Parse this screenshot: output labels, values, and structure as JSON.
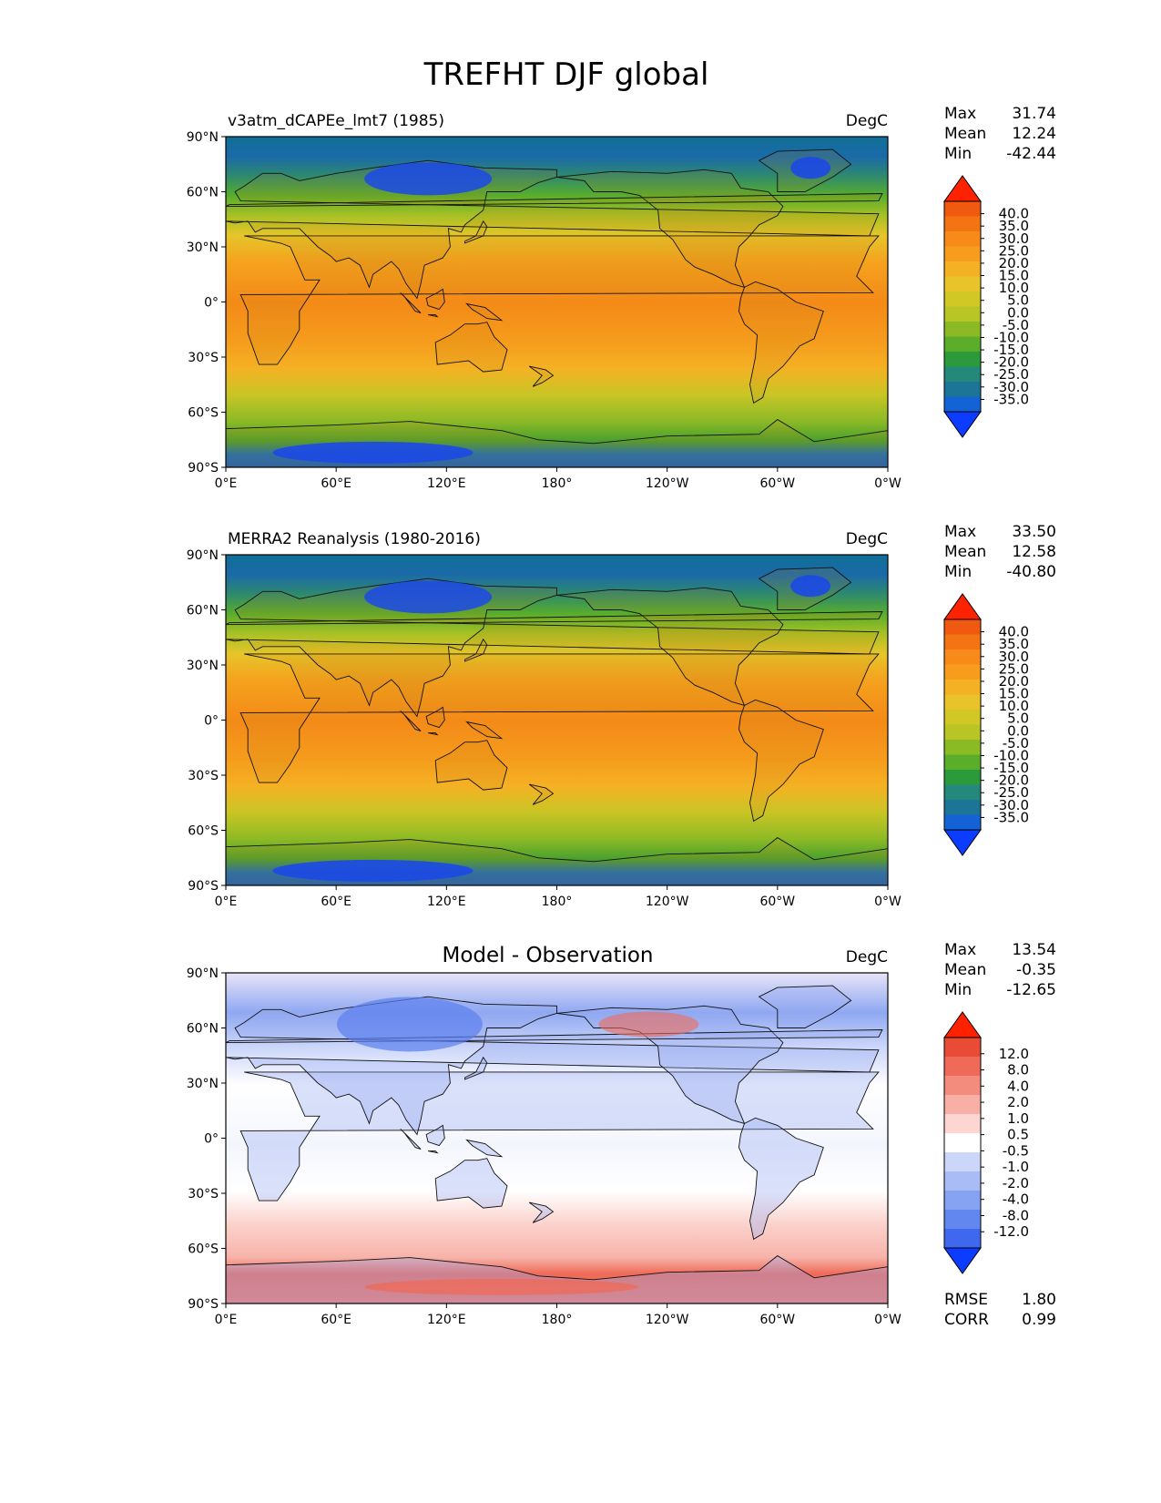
{
  "figure": {
    "title": "TREFHT DJF global"
  },
  "axes": {
    "lat_ticks": [
      {
        "value": 90,
        "label": "90°N"
      },
      {
        "value": 60,
        "label": "60°N"
      },
      {
        "value": 30,
        "label": "30°N"
      },
      {
        "value": 0,
        "label": "0°"
      },
      {
        "value": -30,
        "label": "30°S"
      },
      {
        "value": -60,
        "label": "60°S"
      },
      {
        "value": -90,
        "label": "90°S"
      }
    ],
    "lon_ticks": [
      {
        "value": 0,
        "label": "0°E"
      },
      {
        "value": 60,
        "label": "60°E"
      },
      {
        "value": 120,
        "label": "120°E"
      },
      {
        "value": 180,
        "label": "180°"
      },
      {
        "value": 240,
        "label": "120°W"
      },
      {
        "value": 300,
        "label": "60°W"
      },
      {
        "value": 360,
        "label": "0°W"
      }
    ]
  },
  "colors": {
    "temperature_levels": [
      "#0b3cff",
      "#1463d6",
      "#1c7596",
      "#24897a",
      "#2a9a3a",
      "#5aae2a",
      "#8cba25",
      "#b9c425",
      "#d2c825",
      "#e8c32a",
      "#f5b124",
      "#f79c1c",
      "#f78a18",
      "#f47414",
      "#ef5a10",
      "#ff2200"
    ],
    "difference_levels": [
      "#0b3cff",
      "#3f68ef",
      "#6288f0",
      "#86a3f3",
      "#aabcf6",
      "#cbd6fa",
      "#ffffff",
      "#fdd6d1",
      "#f8b0a6",
      "#f48c7e",
      "#ef6a58",
      "#e84b36",
      "#ff2200"
    ]
  },
  "chart_data": [
    {
      "type": "heatmap",
      "panel": "test",
      "title": "v3atm_dCAPEe_lmt7 (1985)",
      "units": "DegC",
      "stats": {
        "max_label": "Max",
        "max": "31.74",
        "mean_label": "Mean",
        "mean": "12.24",
        "min_label": "Min",
        "min": "-42.44"
      },
      "xlim": [
        0,
        360
      ],
      "ylim": [
        -90,
        90
      ],
      "colorbar_levels": [
        "40.0",
        "35.0",
        "30.0",
        "25.0",
        "20.0",
        "15.0",
        "10.0",
        "5.0",
        "0.0",
        "-5.0",
        "-10.0",
        "-15.0",
        "-20.0",
        "-25.0",
        "-30.0",
        "-35.0"
      ]
    },
    {
      "type": "heatmap",
      "panel": "reference",
      "title": "MERRA2 Reanalysis (1980-2016)",
      "units": "DegC",
      "stats": {
        "max_label": "Max",
        "max": "33.50",
        "mean_label": "Mean",
        "mean": "12.58",
        "min_label": "Min",
        "min": "-40.80"
      },
      "xlim": [
        0,
        360
      ],
      "ylim": [
        -90,
        90
      ],
      "colorbar_levels": [
        "40.0",
        "35.0",
        "30.0",
        "25.0",
        "20.0",
        "15.0",
        "10.0",
        "5.0",
        "0.0",
        "-5.0",
        "-10.0",
        "-15.0",
        "-20.0",
        "-25.0",
        "-30.0",
        "-35.0"
      ]
    },
    {
      "type": "heatmap",
      "panel": "difference",
      "title": "Model - Observation",
      "units": "DegC",
      "stats": {
        "max_label": "Max",
        "max": "13.54",
        "mean_label": "Mean",
        "mean": "-0.35",
        "min_label": "Min",
        "min": "-12.65"
      },
      "xlim": [
        0,
        360
      ],
      "ylim": [
        -90,
        90
      ],
      "colorbar_levels": [
        "12.0",
        "8.0",
        "4.0",
        "2.0",
        "1.0",
        "0.5",
        "-0.5",
        "-1.0",
        "-2.0",
        "-4.0",
        "-8.0",
        "-12.0"
      ],
      "metrics": {
        "rmse_label": "RMSE",
        "rmse": "1.80",
        "corr_label": "CORR",
        "corr": "0.99"
      }
    }
  ]
}
